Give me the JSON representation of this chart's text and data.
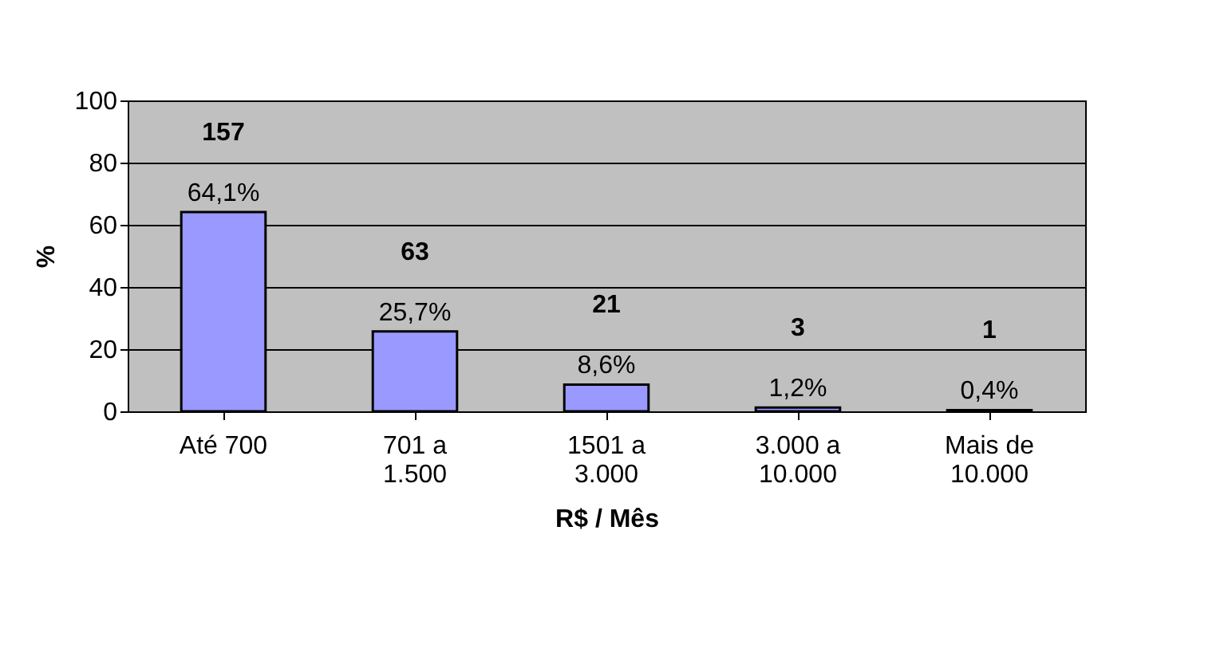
{
  "chart_data": {
    "type": "bar",
    "xlabel": "R$ / Mês",
    "ylabel": "%",
    "categories": [
      "Até 700",
      "701 a\n1.500",
      "1501 a\n3.000",
      "3.000 a\n10.000",
      "Mais de\n10.000"
    ],
    "values": [
      64.1,
      25.7,
      8.6,
      1.2,
      0.4
    ],
    "value_labels": [
      "157\n64,1%",
      "63\n25,7%",
      "21\n8,6%",
      "3\n1,2%",
      "1\n0,4%"
    ],
    "color": "#9999ff",
    "ylim": [
      0,
      100
    ],
    "yticks": [
      0,
      20,
      40,
      60,
      80,
      100
    ],
    "grid": "y"
  }
}
